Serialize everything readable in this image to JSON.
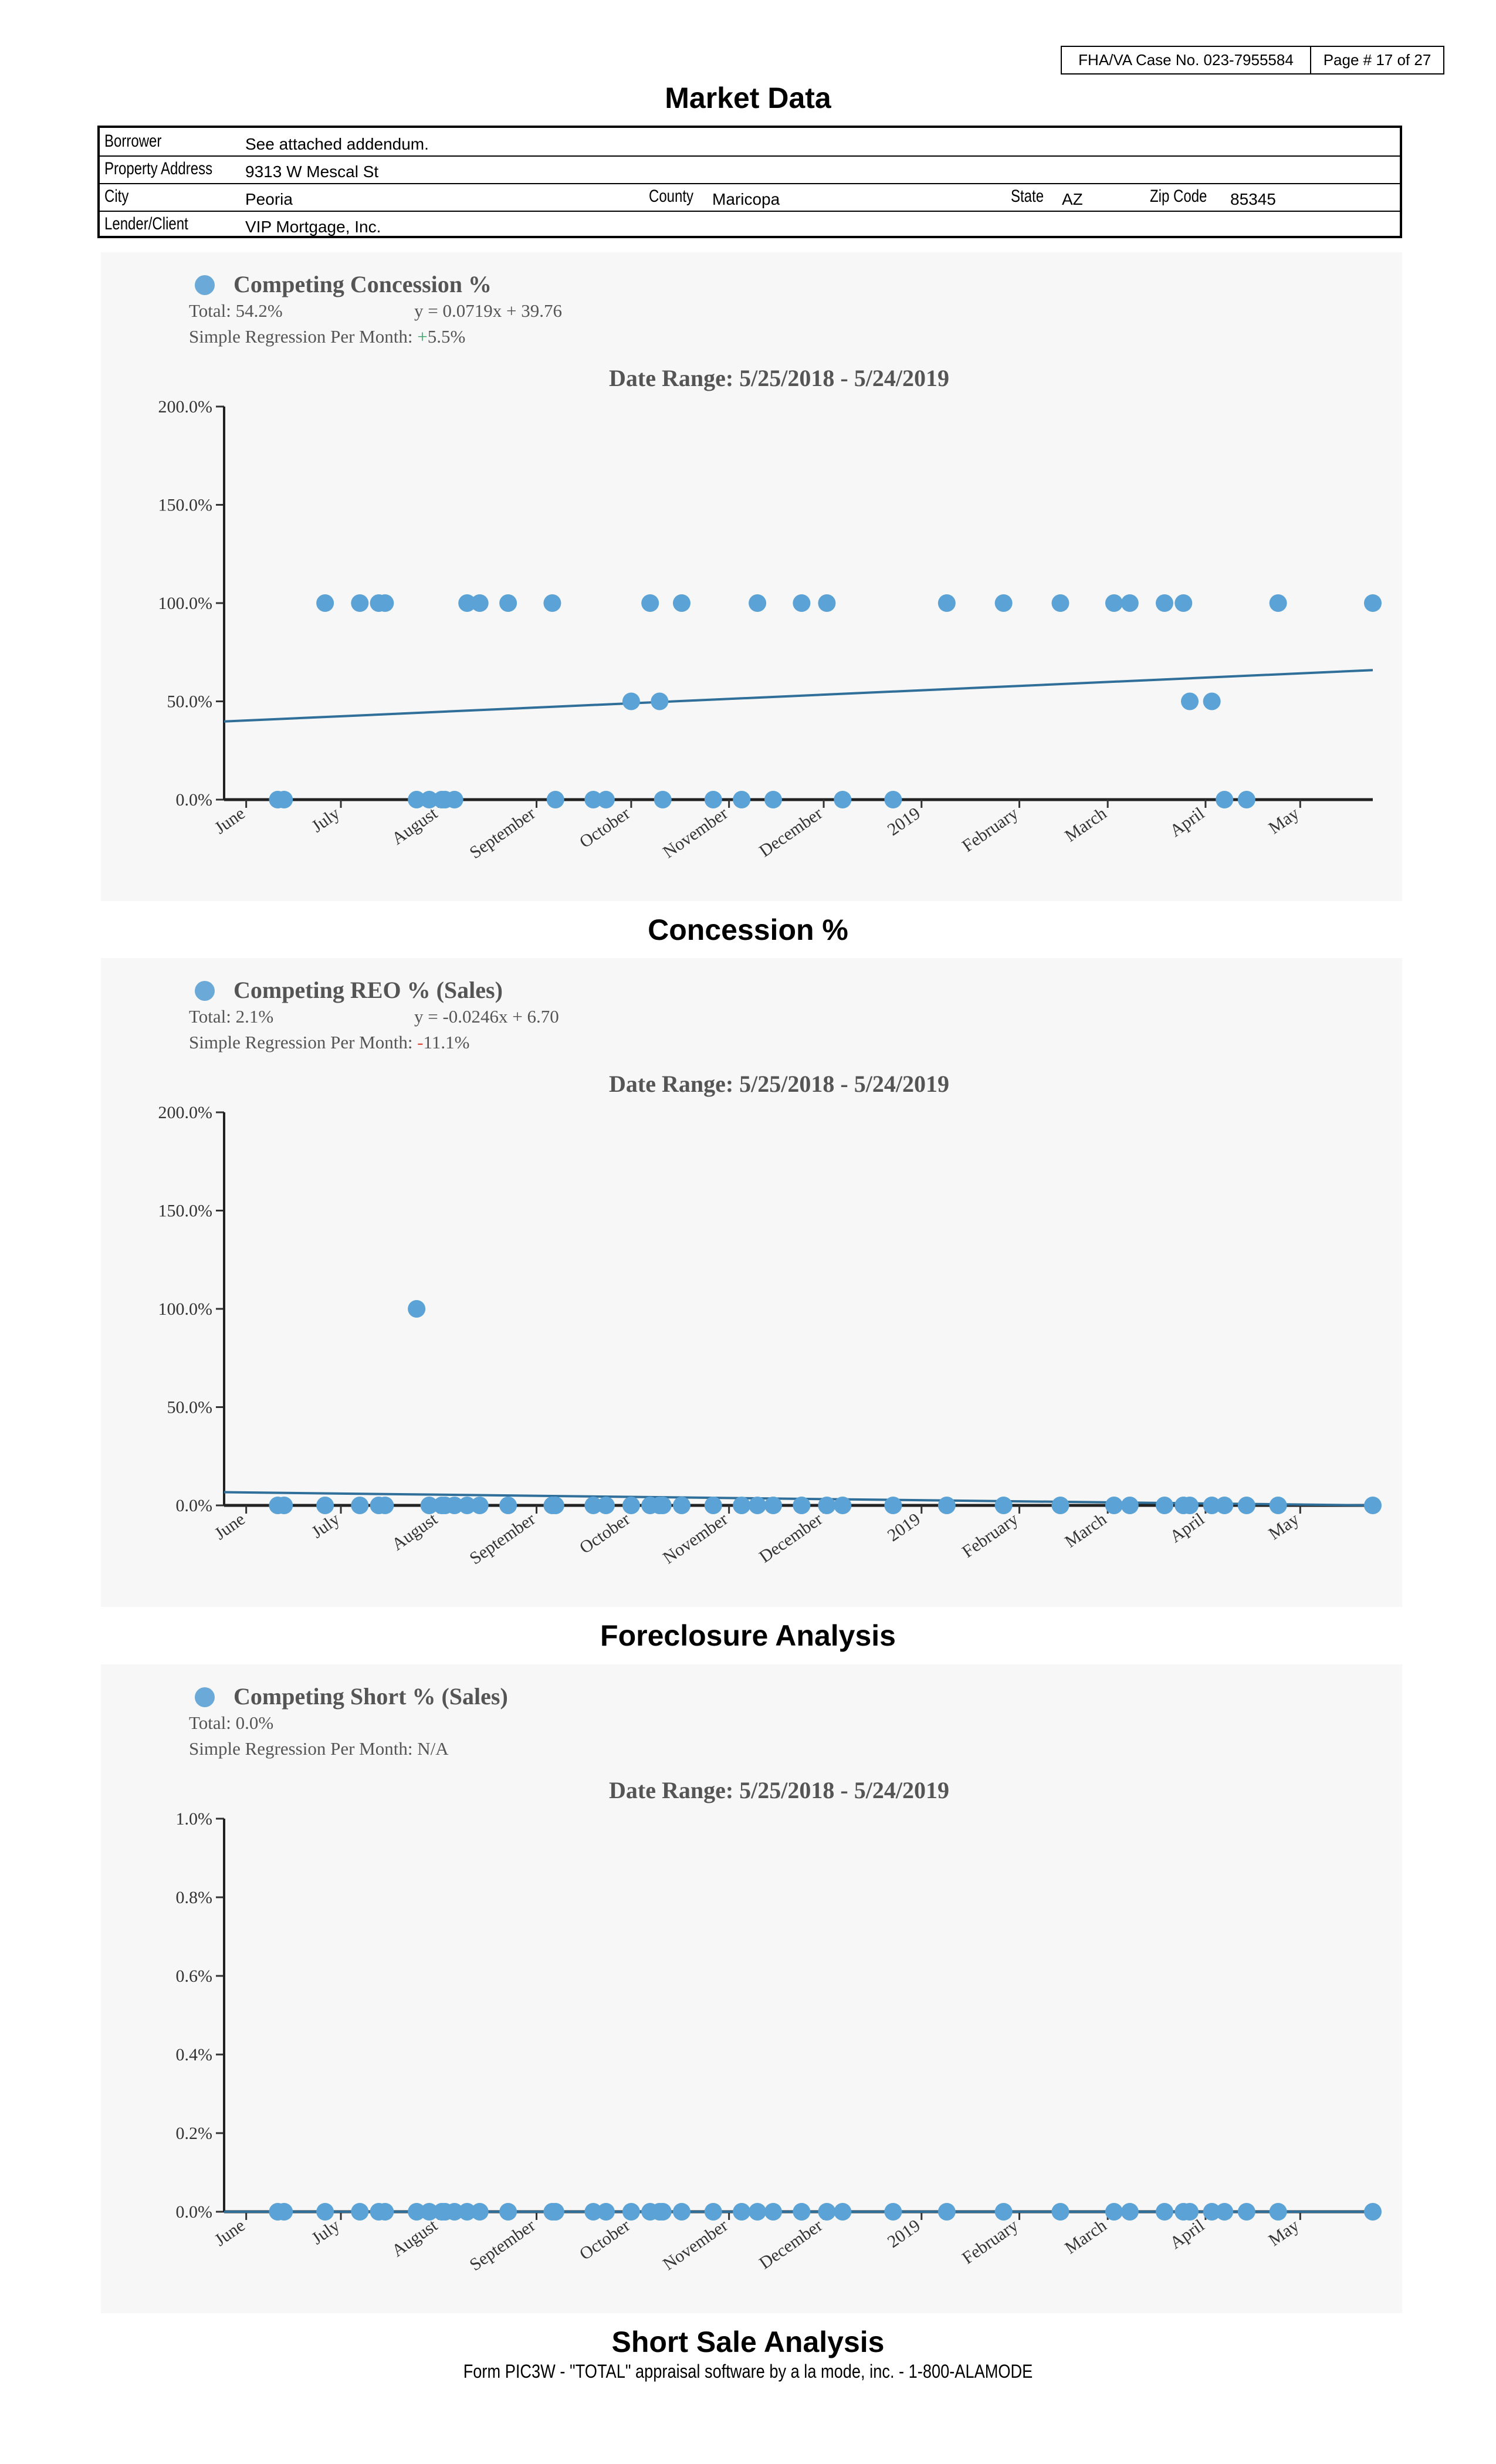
{
  "header": {
    "case_label": "FHA/VA Case No. 023-7955584",
    "page_label": "Page # 17 of 27"
  },
  "page_title": "Market Data",
  "info": {
    "borrower_label": "Borrower",
    "borrower_value": "See attached addendum.",
    "property_label": "Property Address",
    "property_value": "9313 W Mescal St",
    "city_label": "City",
    "city_value": "Peoria",
    "county_label": "County",
    "county_value": "Maricopa",
    "state_label": "State",
    "state_value": "AZ",
    "zip_label": "Zip Code",
    "zip_value": "85345",
    "lender_label": "Lender/Client",
    "lender_value": "VIP Mortgage, Inc."
  },
  "charts": [
    {
      "caption": "Concession %"
    },
    {
      "caption": "Foreclosure Analysis"
    },
    {
      "caption": "Short Sale Analysis"
    }
  ],
  "footer": "Form PIC3W - \"TOTAL\" appraisal software by a la mode, inc. - 1-800-ALAMODE",
  "chart_data": [
    {
      "type": "scatter",
      "legend": "Competing Concession %",
      "total": "Total: 54.2%",
      "equation": "y = 0.0719x + 39.76",
      "regression_label": "Simple Regression Per Month:",
      "regression_sign": "+",
      "regression_value": "5.5%",
      "regression_sign_color": "#3fa56b",
      "range_title": "Date Range: 5/25/2018 - 5/24/2019",
      "ylim": [
        0,
        200
      ],
      "yticks": [
        "0.0%",
        "50.0%",
        "100.0%",
        "150.0%",
        "200.0%"
      ],
      "xlim": [
        "2018-05-25",
        "2019-05-24"
      ],
      "month_ticks": [
        {
          "label": "June",
          "date": "2018-06-01"
        },
        {
          "label": "July",
          "date": "2018-07-01"
        },
        {
          "label": "August",
          "date": "2018-08-01"
        },
        {
          "label": "September",
          "date": "2018-09-01"
        },
        {
          "label": "October",
          "date": "2018-10-01"
        },
        {
          "label": "November",
          "date": "2018-11-01"
        },
        {
          "label": "December",
          "date": "2018-12-01"
        },
        {
          "label": "2019",
          "date": "2019-01-01"
        },
        {
          "label": "February",
          "date": "2019-02-01"
        },
        {
          "label": "March",
          "date": "2019-03-01"
        },
        {
          "label": "April",
          "date": "2019-04-01"
        },
        {
          "label": "May",
          "date": "2019-05-01"
        }
      ],
      "points": [
        {
          "x": "2018-06-11",
          "y": 0
        },
        {
          "x": "2018-06-13",
          "y": 0
        },
        {
          "x": "2018-06-26",
          "y": 100
        },
        {
          "x": "2018-07-07",
          "y": 100
        },
        {
          "x": "2018-07-13",
          "y": 100
        },
        {
          "x": "2018-07-15",
          "y": 100
        },
        {
          "x": "2018-07-25",
          "y": 0
        },
        {
          "x": "2018-07-29",
          "y": 0
        },
        {
          "x": "2018-08-02",
          "y": 0
        },
        {
          "x": "2018-08-03",
          "y": 0
        },
        {
          "x": "2018-08-06",
          "y": 0
        },
        {
          "x": "2018-08-10",
          "y": 100
        },
        {
          "x": "2018-08-14",
          "y": 100
        },
        {
          "x": "2018-08-23",
          "y": 100
        },
        {
          "x": "2018-09-06",
          "y": 100
        },
        {
          "x": "2018-09-07",
          "y": 0
        },
        {
          "x": "2018-09-19",
          "y": 0
        },
        {
          "x": "2018-09-23",
          "y": 0
        },
        {
          "x": "2018-10-01",
          "y": 50
        },
        {
          "x": "2018-10-07",
          "y": 100
        },
        {
          "x": "2018-10-10",
          "y": 50
        },
        {
          "x": "2018-10-11",
          "y": 0
        },
        {
          "x": "2018-10-17",
          "y": 100
        },
        {
          "x": "2018-10-27",
          "y": 0
        },
        {
          "x": "2018-11-05",
          "y": 0
        },
        {
          "x": "2018-11-10",
          "y": 100
        },
        {
          "x": "2018-11-15",
          "y": 0
        },
        {
          "x": "2018-11-24",
          "y": 100
        },
        {
          "x": "2018-12-02",
          "y": 100
        },
        {
          "x": "2018-12-07",
          "y": 0
        },
        {
          "x": "2018-12-23",
          "y": 0
        },
        {
          "x": "2019-01-09",
          "y": 100
        },
        {
          "x": "2019-01-27",
          "y": 100
        },
        {
          "x": "2019-02-14",
          "y": 100
        },
        {
          "x": "2019-03-03",
          "y": 100
        },
        {
          "x": "2019-03-08",
          "y": 100
        },
        {
          "x": "2019-03-19",
          "y": 100
        },
        {
          "x": "2019-03-25",
          "y": 100
        },
        {
          "x": "2019-03-27",
          "y": 50
        },
        {
          "x": "2019-04-03",
          "y": 50
        },
        {
          "x": "2019-04-07",
          "y": 0
        },
        {
          "x": "2019-04-14",
          "y": 0
        },
        {
          "x": "2019-04-24",
          "y": 100
        },
        {
          "x": "2019-05-24",
          "y": 100
        }
      ],
      "trend": {
        "y_start": 39.76,
        "y_end": 65.9
      }
    },
    {
      "type": "scatter",
      "legend": "Competing REO % (Sales)",
      "total": "Total: 2.1%",
      "equation": "y = -0.0246x + 6.70",
      "regression_label": "Simple Regression Per Month:",
      "regression_sign": "-",
      "regression_value": "11.1%",
      "regression_sign_color": "#e04a3a",
      "range_title": "Date Range: 5/25/2018 - 5/24/2019",
      "ylim": [
        0,
        200
      ],
      "yticks": [
        "0.0%",
        "50.0%",
        "100.0%",
        "150.0%",
        "200.0%"
      ],
      "xlim": [
        "2018-05-25",
        "2019-05-24"
      ],
      "month_ticks": [
        {
          "label": "June",
          "date": "2018-06-01"
        },
        {
          "label": "July",
          "date": "2018-07-01"
        },
        {
          "label": "August",
          "date": "2018-08-01"
        },
        {
          "label": "September",
          "date": "2018-09-01"
        },
        {
          "label": "October",
          "date": "2018-10-01"
        },
        {
          "label": "November",
          "date": "2018-11-01"
        },
        {
          "label": "December",
          "date": "2018-12-01"
        },
        {
          "label": "2019",
          "date": "2019-01-01"
        },
        {
          "label": "February",
          "date": "2019-02-01"
        },
        {
          "label": "March",
          "date": "2019-03-01"
        },
        {
          "label": "April",
          "date": "2019-04-01"
        },
        {
          "label": "May",
          "date": "2019-05-01"
        }
      ],
      "points": [
        {
          "x": "2018-06-11",
          "y": 0
        },
        {
          "x": "2018-06-13",
          "y": 0
        },
        {
          "x": "2018-06-26",
          "y": 0
        },
        {
          "x": "2018-07-07",
          "y": 0
        },
        {
          "x": "2018-07-13",
          "y": 0
        },
        {
          "x": "2018-07-15",
          "y": 0
        },
        {
          "x": "2018-07-25",
          "y": 100
        },
        {
          "x": "2018-07-29",
          "y": 0
        },
        {
          "x": "2018-08-02",
          "y": 0
        },
        {
          "x": "2018-08-03",
          "y": 0
        },
        {
          "x": "2018-08-06",
          "y": 0
        },
        {
          "x": "2018-08-10",
          "y": 0
        },
        {
          "x": "2018-08-14",
          "y": 0
        },
        {
          "x": "2018-08-23",
          "y": 0
        },
        {
          "x": "2018-09-06",
          "y": 0
        },
        {
          "x": "2018-09-07",
          "y": 0
        },
        {
          "x": "2018-09-19",
          "y": 0
        },
        {
          "x": "2018-09-23",
          "y": 0
        },
        {
          "x": "2018-10-01",
          "y": 0
        },
        {
          "x": "2018-10-07",
          "y": 0
        },
        {
          "x": "2018-10-10",
          "y": 0
        },
        {
          "x": "2018-10-11",
          "y": 0
        },
        {
          "x": "2018-10-17",
          "y": 0
        },
        {
          "x": "2018-10-27",
          "y": 0
        },
        {
          "x": "2018-11-05",
          "y": 0
        },
        {
          "x": "2018-11-10",
          "y": 0
        },
        {
          "x": "2018-11-15",
          "y": 0
        },
        {
          "x": "2018-11-24",
          "y": 0
        },
        {
          "x": "2018-12-02",
          "y": 0
        },
        {
          "x": "2018-12-07",
          "y": 0
        },
        {
          "x": "2018-12-23",
          "y": 0
        },
        {
          "x": "2019-01-09",
          "y": 0
        },
        {
          "x": "2019-01-27",
          "y": 0
        },
        {
          "x": "2019-02-14",
          "y": 0
        },
        {
          "x": "2019-03-03",
          "y": 0
        },
        {
          "x": "2019-03-08",
          "y": 0
        },
        {
          "x": "2019-03-19",
          "y": 0
        },
        {
          "x": "2019-03-25",
          "y": 0
        },
        {
          "x": "2019-03-27",
          "y": 0
        },
        {
          "x": "2019-04-03",
          "y": 0
        },
        {
          "x": "2019-04-07",
          "y": 0
        },
        {
          "x": "2019-04-14",
          "y": 0
        },
        {
          "x": "2019-04-24",
          "y": 0
        },
        {
          "x": "2019-05-24",
          "y": 0
        }
      ],
      "trend": {
        "y_start": 6.7,
        "y_end": -2.3
      }
    },
    {
      "type": "scatter",
      "legend": "Competing Short % (Sales)",
      "total": "Total: 0.0%",
      "equation": "",
      "regression_label": "Simple Regression Per Month:",
      "regression_sign": "",
      "regression_value": "N/A",
      "regression_sign_color": "#555555",
      "range_title": "Date Range: 5/25/2018 - 5/24/2019",
      "ylim": [
        0,
        1
      ],
      "yticks": [
        "0.0%",
        "0.2%",
        "0.4%",
        "0.6%",
        "0.8%",
        "1.0%"
      ],
      "xlim": [
        "2018-05-25",
        "2019-05-24"
      ],
      "month_ticks": [
        {
          "label": "June",
          "date": "2018-06-01"
        },
        {
          "label": "July",
          "date": "2018-07-01"
        },
        {
          "label": "August",
          "date": "2018-08-01"
        },
        {
          "label": "September",
          "date": "2018-09-01"
        },
        {
          "label": "October",
          "date": "2018-10-01"
        },
        {
          "label": "November",
          "date": "2018-11-01"
        },
        {
          "label": "December",
          "date": "2018-12-01"
        },
        {
          "label": "2019",
          "date": "2019-01-01"
        },
        {
          "label": "February",
          "date": "2019-02-01"
        },
        {
          "label": "March",
          "date": "2019-03-01"
        },
        {
          "label": "April",
          "date": "2019-04-01"
        },
        {
          "label": "May",
          "date": "2019-05-01"
        }
      ],
      "points": [
        {
          "x": "2018-06-11",
          "y": 0
        },
        {
          "x": "2018-06-13",
          "y": 0
        },
        {
          "x": "2018-06-26",
          "y": 0
        },
        {
          "x": "2018-07-07",
          "y": 0
        },
        {
          "x": "2018-07-13",
          "y": 0
        },
        {
          "x": "2018-07-15",
          "y": 0
        },
        {
          "x": "2018-07-25",
          "y": 0
        },
        {
          "x": "2018-07-29",
          "y": 0
        },
        {
          "x": "2018-08-02",
          "y": 0
        },
        {
          "x": "2018-08-03",
          "y": 0
        },
        {
          "x": "2018-08-06",
          "y": 0
        },
        {
          "x": "2018-08-10",
          "y": 0
        },
        {
          "x": "2018-08-14",
          "y": 0
        },
        {
          "x": "2018-08-23",
          "y": 0
        },
        {
          "x": "2018-09-06",
          "y": 0
        },
        {
          "x": "2018-09-07",
          "y": 0
        },
        {
          "x": "2018-09-19",
          "y": 0
        },
        {
          "x": "2018-09-23",
          "y": 0
        },
        {
          "x": "2018-10-01",
          "y": 0
        },
        {
          "x": "2018-10-07",
          "y": 0
        },
        {
          "x": "2018-10-10",
          "y": 0
        },
        {
          "x": "2018-10-11",
          "y": 0
        },
        {
          "x": "2018-10-17",
          "y": 0
        },
        {
          "x": "2018-10-27",
          "y": 0
        },
        {
          "x": "2018-11-05",
          "y": 0
        },
        {
          "x": "2018-11-10",
          "y": 0
        },
        {
          "x": "2018-11-15",
          "y": 0
        },
        {
          "x": "2018-11-24",
          "y": 0
        },
        {
          "x": "2018-12-02",
          "y": 0
        },
        {
          "x": "2018-12-07",
          "y": 0
        },
        {
          "x": "2018-12-23",
          "y": 0
        },
        {
          "x": "2019-01-09",
          "y": 0
        },
        {
          "x": "2019-01-27",
          "y": 0
        },
        {
          "x": "2019-02-14",
          "y": 0
        },
        {
          "x": "2019-03-03",
          "y": 0
        },
        {
          "x": "2019-03-08",
          "y": 0
        },
        {
          "x": "2019-03-19",
          "y": 0
        },
        {
          "x": "2019-03-25",
          "y": 0
        },
        {
          "x": "2019-03-27",
          "y": 0
        },
        {
          "x": "2019-04-03",
          "y": 0
        },
        {
          "x": "2019-04-07",
          "y": 0
        },
        {
          "x": "2019-04-14",
          "y": 0
        },
        {
          "x": "2019-04-24",
          "y": 0
        },
        {
          "x": "2019-05-24",
          "y": 0
        }
      ],
      "trend": {
        "y_start": 0,
        "y_end": 0
      }
    }
  ]
}
